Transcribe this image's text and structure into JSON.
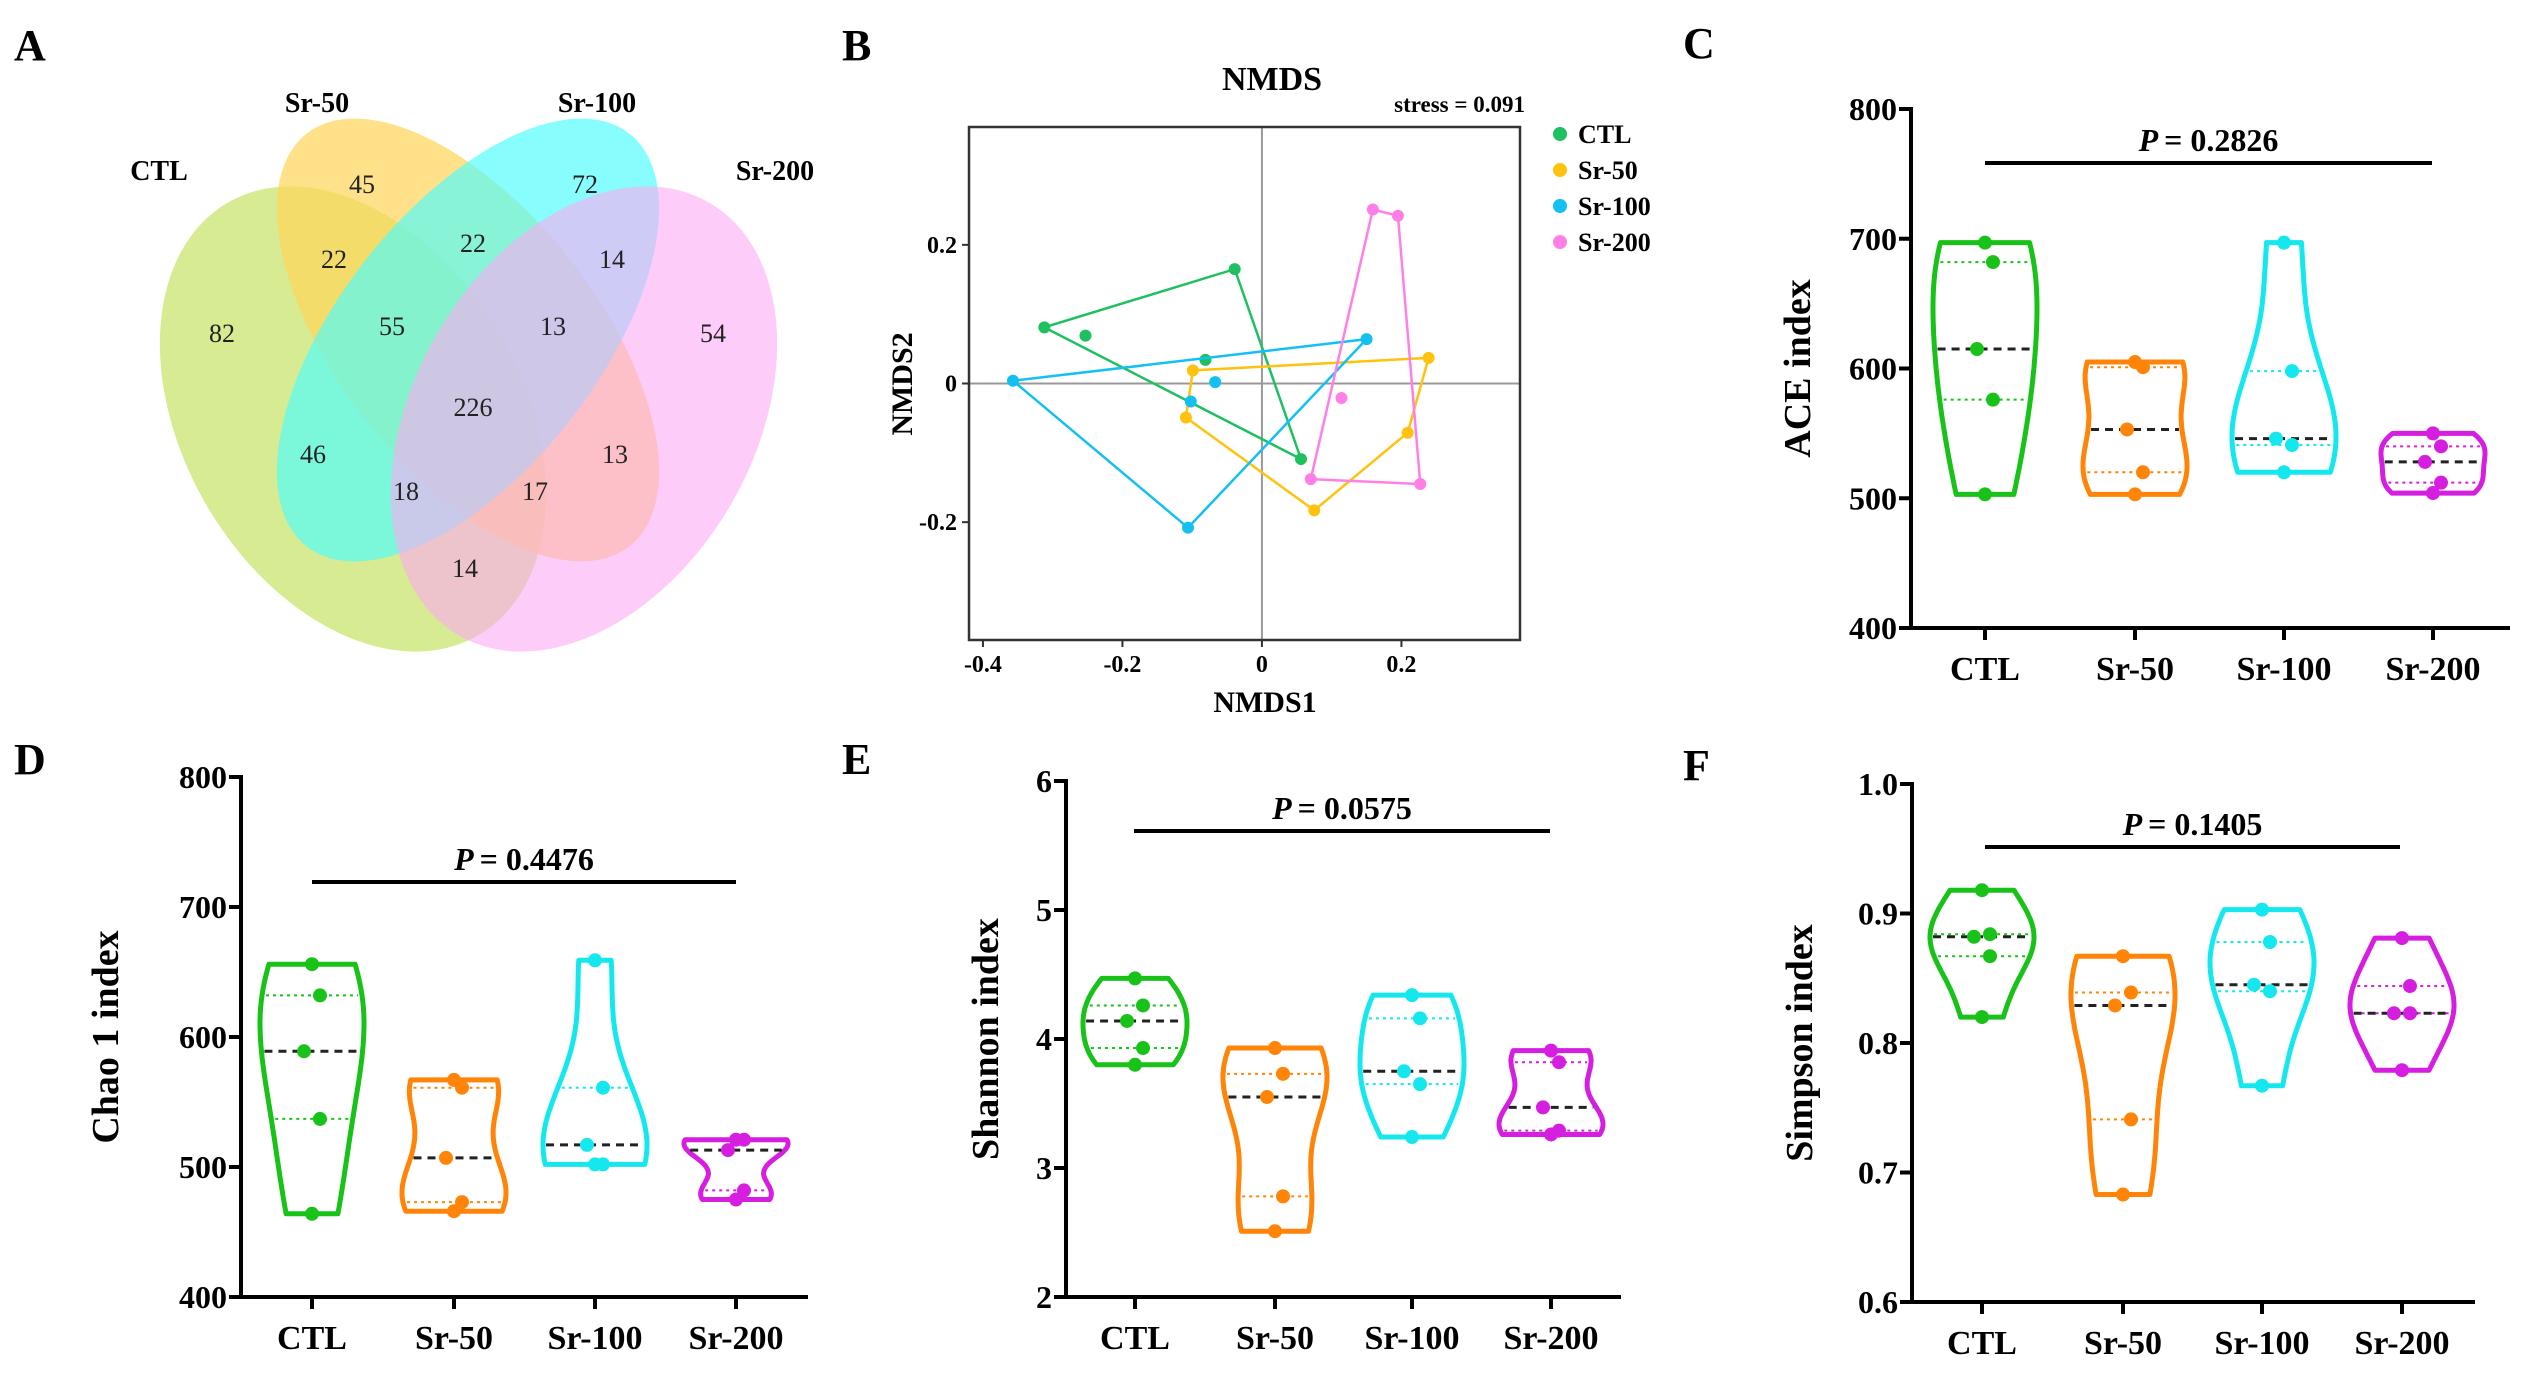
{
  "panel_letters": [
    "A",
    "B",
    "C",
    "D",
    "E",
    "F"
  ],
  "groups": [
    "CTL",
    "Sr-50",
    "Sr-100",
    "Sr-200"
  ],
  "colors": {
    "venn": [
      "#cfe87f",
      "#fed55a",
      "#4ffcfc",
      "#fdaaf3"
    ],
    "nmds": [
      "#1ec060",
      "#ffc20e",
      "#14c0f2",
      "#ff7fe6"
    ],
    "violin": [
      "#19c219",
      "#ff8408",
      "#14e8ee",
      "#d51ee0"
    ]
  },
  "chart_data": [
    {
      "type": "venn",
      "sets": [
        "CTL",
        "Sr-50",
        "Sr-100",
        "Sr-200"
      ],
      "regions": [
        {
          "sets": [
            "CTL"
          ],
          "value": "82"
        },
        {
          "sets": [
            "Sr-50"
          ],
          "value": "45"
        },
        {
          "sets": [
            "Sr-100"
          ],
          "value": "72"
        },
        {
          "sets": [
            "Sr-200"
          ],
          "value": "54"
        },
        {
          "sets": [
            "CTL",
            "Sr-50"
          ],
          "value": "22"
        },
        {
          "sets": [
            "Sr-50",
            "Sr-100"
          ],
          "value": "22"
        },
        {
          "sets": [
            "Sr-100",
            "Sr-200"
          ],
          "value": "14"
        },
        {
          "sets": [
            "CTL",
            "Sr-50",
            "Sr-100"
          ],
          "value": "55"
        },
        {
          "sets": [
            "Sr-50",
            "Sr-100",
            "Sr-200"
          ],
          "value": "13"
        },
        {
          "sets": [
            "CTL",
            "Sr-50",
            "Sr-100",
            "Sr-200"
          ],
          "value": "226"
        },
        {
          "sets": [
            "CTL",
            "Sr-100"
          ],
          "value": "46"
        },
        {
          "sets": [
            "Sr-50",
            "Sr-200"
          ],
          "value": "13"
        },
        {
          "sets": [
            "CTL",
            "Sr-100",
            "Sr-200"
          ],
          "value": "18"
        },
        {
          "sets": [
            "CTL",
            "Sr-50",
            "Sr-200"
          ],
          "value": "17"
        },
        {
          "sets": [
            "CTL",
            "Sr-200"
          ],
          "value": "14"
        }
      ]
    },
    {
      "type": "scatter",
      "title": "NMDS",
      "annotation": "stress = 0.091",
      "xlabel": "NMDS1",
      "ylabel": "NMDS2",
      "xlim": [
        -0.42,
        0.37
      ],
      "ylim": [
        -0.37,
        0.37
      ],
      "xticks": [
        "-0.4",
        "-0.2",
        "0",
        "0.2"
      ],
      "yticks": [
        "-0.2",
        "0",
        "0.2"
      ],
      "legend": "right",
      "series": [
        {
          "name": "CTL",
          "points": [
            [
              -0.312,
              0.081
            ],
            [
              -0.253,
              0.069
            ],
            [
              -0.039,
              0.165
            ],
            [
              -0.081,
              0.034
            ],
            [
              0.056,
              -0.109
            ]
          ]
        },
        {
          "name": "Sr-50",
          "points": [
            [
              -0.099,
              0.019
            ],
            [
              0.239,
              0.037
            ],
            [
              0.209,
              -0.071
            ],
            [
              0.075,
              -0.183
            ],
            [
              -0.109,
              -0.049
            ]
          ]
        },
        {
          "name": "Sr-100",
          "points": [
            [
              -0.357,
              0.004
            ],
            [
              0.15,
              0.064
            ],
            [
              -0.106,
              -0.208
            ],
            [
              -0.102,
              -0.026
            ],
            [
              -0.067,
              0.002
            ]
          ]
        },
        {
          "name": "Sr-200",
          "points": [
            [
              0.159,
              0.251
            ],
            [
              0.195,
              0.242
            ],
            [
              0.227,
              -0.145
            ],
            [
              0.07,
              -0.138
            ],
            [
              0.114,
              -0.021
            ]
          ]
        }
      ]
    },
    {
      "type": "violin",
      "ylabel": "ACE index",
      "ylim": [
        400,
        800
      ],
      "yticks": [
        "400",
        "500",
        "600",
        "700",
        "800"
      ],
      "p_label": "P",
      "p_value": "= 0.2826",
      "categories": [
        "CTL",
        "Sr-50",
        "Sr-100",
        "Sr-200"
      ],
      "series": [
        [
          697,
          682,
          615,
          576,
          503
        ],
        [
          605,
          601,
          553,
          520,
          503
        ],
        [
          697,
          598,
          546,
          541,
          520
        ],
        [
          550,
          540,
          528,
          512,
          504
        ]
      ]
    },
    {
      "type": "violin",
      "ylabel": "Chao 1 index",
      "ylim": [
        400,
        800
      ],
      "yticks": [
        "400",
        "500",
        "600",
        "700",
        "800"
      ],
      "p_label": "P",
      "p_value": "= 0.4476",
      "categories": [
        "CTL",
        "Sr-50",
        "Sr-100",
        "Sr-200"
      ],
      "series": [
        [
          656,
          632,
          589,
          537,
          464
        ],
        [
          567,
          561,
          507,
          473,
          466
        ],
        [
          659,
          561,
          517,
          502,
          502
        ],
        [
          521,
          521,
          513,
          482,
          475
        ]
      ]
    },
    {
      "type": "violin",
      "ylabel": "Shannon index",
      "ylim": [
        2,
        6
      ],
      "yticks": [
        "2",
        "3",
        "4",
        "5",
        "6"
      ],
      "p_label": "P",
      "p_value": "= 0.0575",
      "categories": [
        "CTL",
        "Sr-50",
        "Sr-100",
        "Sr-200"
      ],
      "series": [
        [
          4.47,
          4.26,
          4.14,
          3.93,
          3.8
        ],
        [
          3.93,
          3.73,
          3.55,
          2.78,
          2.51
        ],
        [
          4.34,
          4.16,
          3.75,
          3.65,
          3.24
        ],
        [
          3.91,
          3.82,
          3.47,
          3.29,
          3.26
        ]
      ]
    },
    {
      "type": "violin",
      "ylabel": "Simpson index",
      "ylim": [
        0.6,
        1.0
      ],
      "yticks": [
        "0.6",
        "0.7",
        "0.8",
        "0.9",
        "1.0"
      ],
      "p_label": "P",
      "p_value": "= 0.1405",
      "categories": [
        "CTL",
        "Sr-50",
        "Sr-100",
        "Sr-200"
      ],
      "series": [
        [
          0.918,
          0.884,
          0.882,
          0.867,
          0.82
        ],
        [
          0.867,
          0.839,
          0.829,
          0.741,
          0.683
        ],
        [
          0.903,
          0.878,
          0.845,
          0.84,
          0.767
        ],
        [
          0.881,
          0.844,
          0.823,
          0.823,
          0.779
        ]
      ]
    }
  ]
}
